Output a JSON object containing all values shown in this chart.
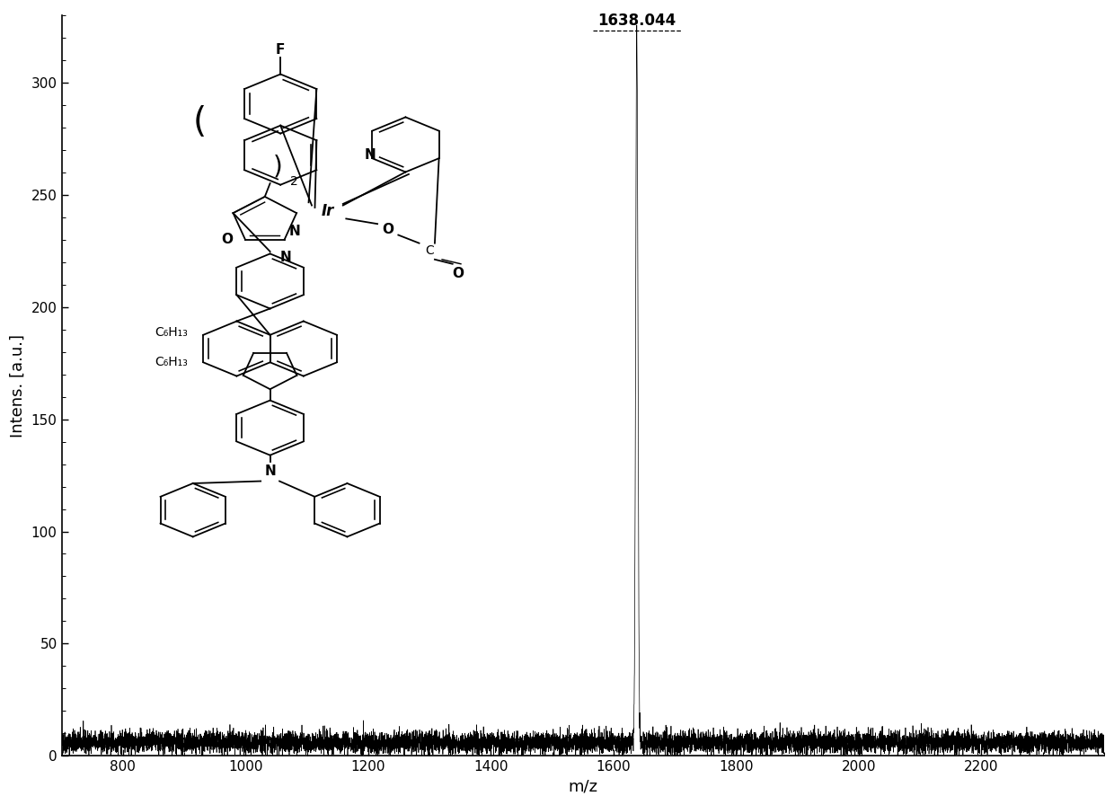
{
  "xlabel": "m/z",
  "ylabel": "Intens. [a.u.]",
  "xlim": [
    700,
    2400
  ],
  "ylim": [
    0,
    330
  ],
  "xticks": [
    800,
    1000,
    1200,
    1400,
    1600,
    1800,
    2000,
    2200
  ],
  "yticks": [
    0,
    50,
    100,
    150,
    200,
    250,
    300
  ],
  "peak_mz": 1638.044,
  "peak_intensity": 318,
  "peak_label": "1638.044",
  "baseline_mean": 6,
  "baseline_noise": 2.5,
  "noise_seed": 42,
  "bg_color": "#ffffff",
  "line_color": "#000000",
  "figsize": [
    12.4,
    8.96
  ],
  "dpi": 100
}
